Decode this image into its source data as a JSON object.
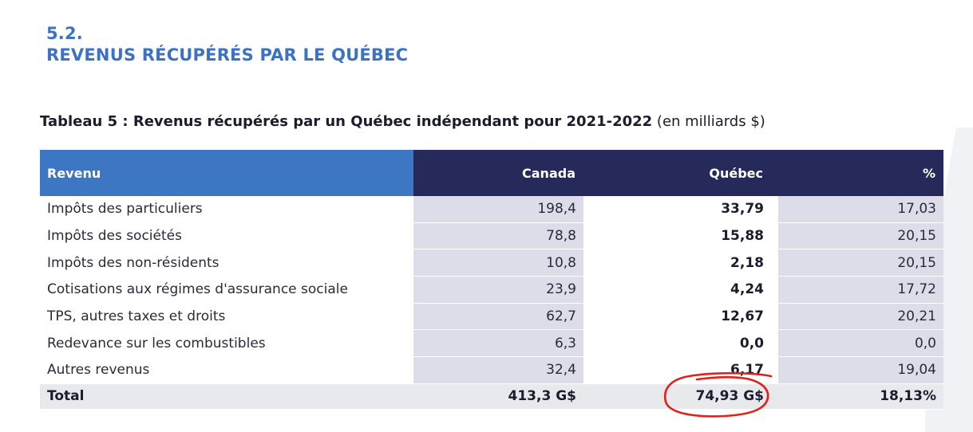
{
  "section": {
    "number": "5.2.",
    "title": "REVENUS RÉCUPÉRÉS PAR LE QUÉBEC"
  },
  "caption": {
    "bold": "Tableau 5 : Revenus récupérés par un Québec indépendant pour 2021-2022",
    "unit": " (en milliards $)"
  },
  "table": {
    "headers": [
      "Revenu",
      "Canada",
      "Québec",
      "%"
    ],
    "rows": [
      {
        "label": "Impôts des particuliers",
        "canada": "198,4",
        "quebec": "33,79",
        "pct": "17,03"
      },
      {
        "label": "Impôts des sociétés",
        "canada": "78,8",
        "quebec": "15,88",
        "pct": "20,15"
      },
      {
        "label": "Impôts des non-résidents",
        "canada": "10,8",
        "quebec": "2,18",
        "pct": "20,15"
      },
      {
        "label": "Cotisations aux régimes d'assurance sociale",
        "canada": "23,9",
        "quebec": "4,24",
        "pct": "17,72"
      },
      {
        "label": "TPS, autres taxes et droits",
        "canada": "62,7",
        "quebec": "12,67",
        "pct": "20,21"
      },
      {
        "label": "Redevance sur les combustibles",
        "canada": "6,3",
        "quebec": "0,0",
        "pct": "0,0"
      },
      {
        "label": "Autres revenus",
        "canada": "32,4",
        "quebec": "6,17",
        "pct": "19,04"
      }
    ],
    "total": {
      "label": "Total",
      "canada": "413,3 G$",
      "quebec": "74,93 G$",
      "pct": "18,13%"
    }
  },
  "colors": {
    "header_blue": "#3d77c4",
    "header_navy": "#252a5a",
    "shade": "#dcdde8",
    "annotation_red": "#e0201a"
  }
}
